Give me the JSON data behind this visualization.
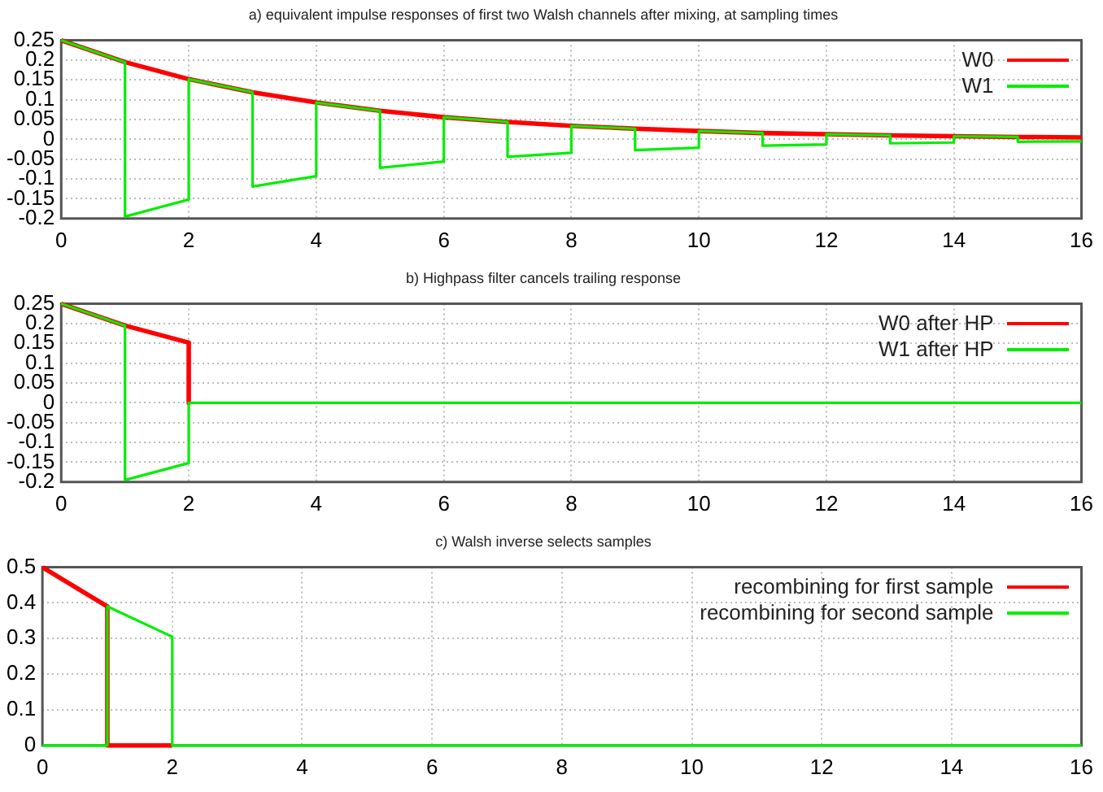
{
  "chart_data": [
    {
      "type": "line",
      "title": "a) equivalent impulse responses of first two Walsh channels after mixing, at sampling times",
      "xlim": [
        0,
        16
      ],
      "xticks": [
        0,
        2,
        4,
        6,
        8,
        10,
        12,
        14,
        16
      ],
      "ylim": [
        -0.2,
        0.25
      ],
      "yticks": [
        -0.2,
        -0.15,
        -0.1,
        -0.05,
        0,
        0.05,
        0.1,
        0.15,
        0.2,
        0.25
      ],
      "grid": true,
      "legend": "top right",
      "series": [
        {
          "name": "W0",
          "color": "#ff0000",
          "x": [
            0,
            1,
            2,
            3,
            4,
            5,
            6,
            7,
            8,
            9,
            10,
            11,
            12,
            13,
            14,
            15,
            16
          ],
          "values": [
            0.25,
            0.195,
            0.152,
            0.119,
            0.093,
            0.072,
            0.056,
            0.044,
            0.034,
            0.027,
            0.021,
            0.016,
            0.013,
            0.01,
            0.008,
            0.006,
            0.005
          ]
        },
        {
          "name": "W1",
          "color": "#00ee00",
          "x": [
            0,
            1,
            1,
            2,
            2,
            3,
            3,
            4,
            4,
            5,
            5,
            6,
            6,
            7,
            7,
            8,
            8,
            9,
            9,
            10,
            10,
            11,
            11,
            12,
            12,
            13,
            13,
            14,
            14,
            15,
            15,
            16
          ],
          "values": [
            0.25,
            0.195,
            -0.195,
            -0.152,
            0.152,
            0.119,
            -0.119,
            -0.093,
            0.093,
            0.072,
            -0.072,
            -0.056,
            0.056,
            0.044,
            -0.044,
            -0.034,
            0.034,
            0.027,
            -0.027,
            -0.021,
            0.021,
            0.016,
            -0.016,
            -0.013,
            0.013,
            0.01,
            -0.01,
            -0.008,
            0.008,
            0.006,
            -0.006,
            -0.005
          ]
        }
      ]
    },
    {
      "type": "line",
      "title": "b) Highpass filter cancels trailing response",
      "xlim": [
        0,
        16
      ],
      "xticks": [
        0,
        2,
        4,
        6,
        8,
        10,
        12,
        14,
        16
      ],
      "ylim": [
        -0.2,
        0.25
      ],
      "yticks": [
        -0.2,
        -0.15,
        -0.1,
        -0.05,
        0,
        0.05,
        0.1,
        0.15,
        0.2,
        0.25
      ],
      "grid": true,
      "legend": "top right",
      "series": [
        {
          "name": "W0 after HP",
          "color": "#ff0000",
          "x": [
            0,
            1,
            2,
            2
          ],
          "values": [
            0.25,
            0.195,
            0.152,
            0
          ]
        },
        {
          "name": "W1 after HP",
          "color": "#00ee00",
          "x": [
            0,
            1,
            1,
            2,
            2,
            16
          ],
          "values": [
            0.25,
            0.195,
            -0.195,
            -0.152,
            0,
            0
          ]
        }
      ]
    },
    {
      "type": "line",
      "title": "c) Walsh inverse selects samples",
      "xlim": [
        0,
        16
      ],
      "xticks": [
        0,
        2,
        4,
        6,
        8,
        10,
        12,
        14,
        16
      ],
      "ylim": [
        0,
        0.5
      ],
      "yticks": [
        0,
        0.1,
        0.2,
        0.3,
        0.4,
        0.5
      ],
      "grid": true,
      "legend": "top right",
      "series": [
        {
          "name": "recombining for first sample",
          "color": "#ff0000",
          "x": [
            0,
            1,
            1,
            2
          ],
          "values": [
            0.5,
            0.39,
            0,
            0
          ]
        },
        {
          "name": "recombining for second sample",
          "color": "#00ee00",
          "x": [
            0,
            1,
            1,
            2,
            2,
            16
          ],
          "values": [
            0,
            0,
            0.39,
            0.305,
            0,
            0
          ]
        }
      ]
    }
  ]
}
